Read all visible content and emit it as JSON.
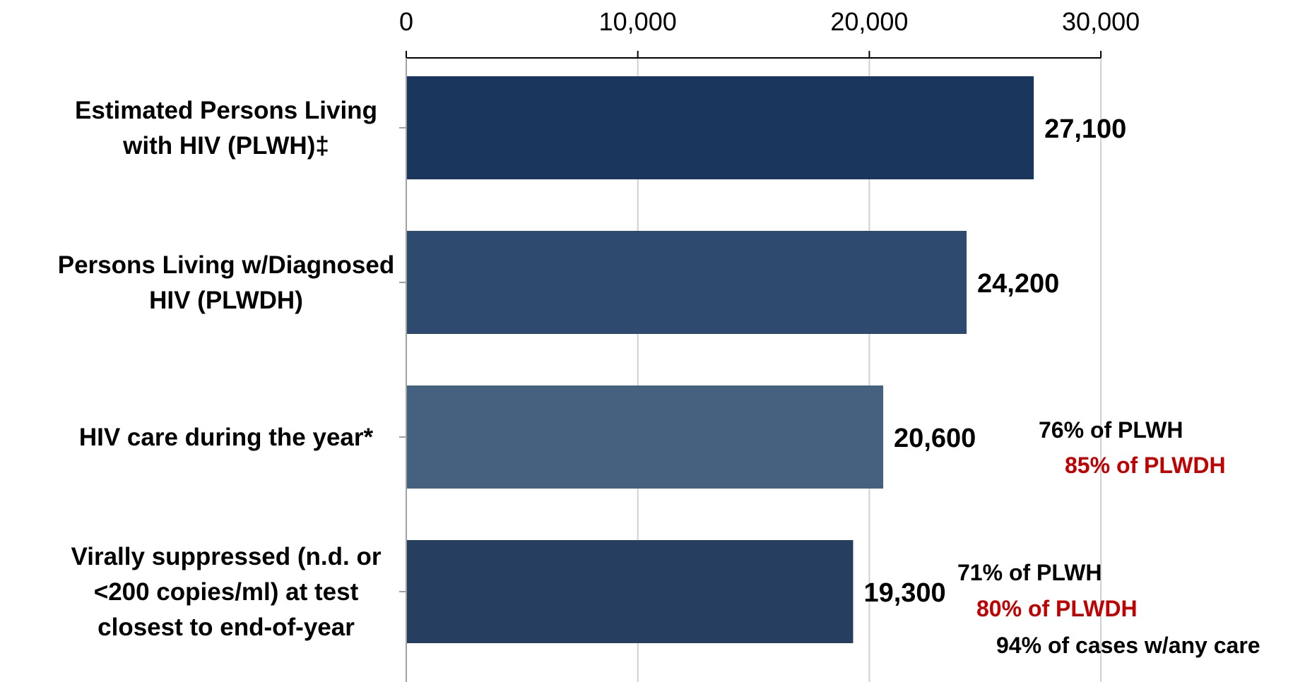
{
  "chart_data": {
    "type": "bar",
    "orientation": "horizontal",
    "categories": [
      [
        "Estimated Persons Living",
        "with HIV (PLWH)‡"
      ],
      [
        "Persons Living w/Diagnosed",
        "HIV (PLWDH)"
      ],
      [
        "HIV care during the year*"
      ],
      [
        "Virally suppressed (n.d. or",
        "<200 copies/ml) at test",
        "closest to end-of-year"
      ]
    ],
    "values": [
      27100,
      24200,
      20600,
      19300
    ],
    "value_labels": [
      "27,100",
      "24,200",
      "20,600",
      "19,300"
    ],
    "bar_colors": [
      "#1b365d",
      "#2e4a6e",
      "#46607f",
      "#263f60"
    ],
    "xlim": [
      0,
      30000
    ],
    "x_ticks": [
      0,
      10000,
      20000,
      30000
    ],
    "x_tick_labels": [
      "0",
      "10,000",
      "20,000",
      "30,000"
    ],
    "x_axis_position": "top",
    "grid": "vertical",
    "title": "",
    "xlabel": "",
    "ylabel": "",
    "annotations": [
      {
        "bar": 2,
        "lines": [
          {
            "text": "76% of PLWH",
            "color": "#000000"
          },
          {
            "text": "85% of PLWDH",
            "color": "#c00000"
          }
        ]
      },
      {
        "bar": 3,
        "lines": [
          {
            "text": "71% of PLWH",
            "color": "#000000"
          },
          {
            "text": "80% of PLWDH",
            "color": "#c00000"
          },
          {
            "text": "94% of cases w/any care",
            "color": "#000000"
          }
        ]
      }
    ]
  }
}
